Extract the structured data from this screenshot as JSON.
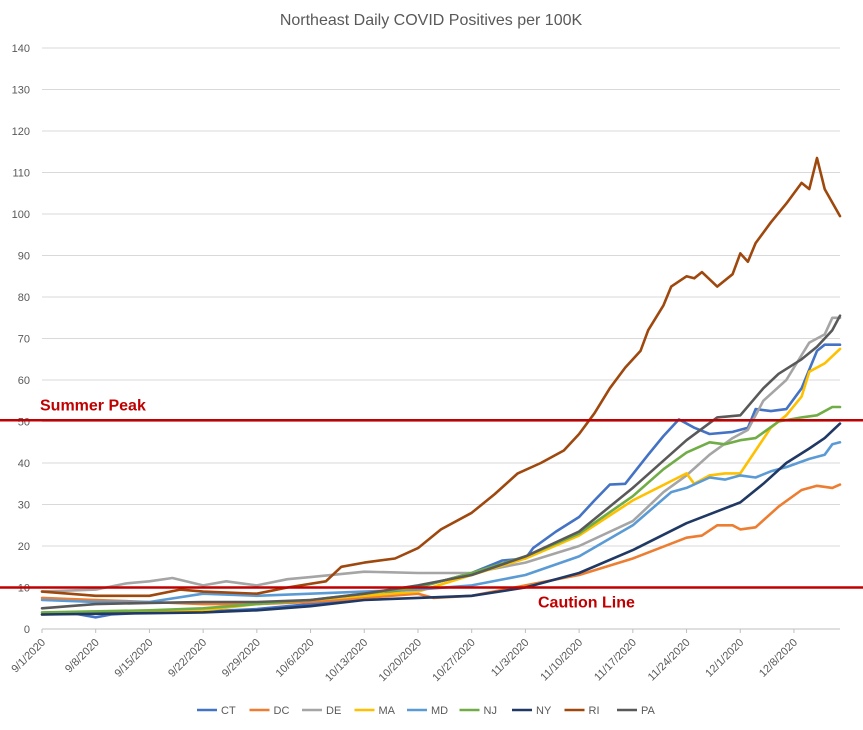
{
  "chart_data": {
    "type": "line",
    "title": "Northeast Daily COVID Positives per 100K",
    "ylim": [
      0,
      140
    ],
    "y_ticks": [
      0,
      10,
      20,
      30,
      40,
      50,
      60,
      70,
      80,
      90,
      100,
      110,
      120,
      130,
      140
    ],
    "x_tick_labels": [
      "9/1/2020",
      "9/8/2020",
      "9/15/2020",
      "9/22/2020",
      "9/29/2020",
      "10/6/2020",
      "10/13/2020",
      "10/20/2020",
      "10/27/2020",
      "11/3/2020",
      "11/10/2020",
      "11/17/2020",
      "11/24/2020",
      "12/1/2020",
      "12/8/2020"
    ],
    "x_start": "9/1/2020",
    "x_end": "12/14/2020",
    "grid": "horizontal",
    "legend_position": "bottom",
    "reference_lines": [
      {
        "label": "Summer Peak",
        "value": 50.3,
        "color": "#c00000"
      },
      {
        "label": "Caution Line",
        "value": 10,
        "color": "#c00000"
      }
    ],
    "series": [
      {
        "name": "CT",
        "color": "#4472c4",
        "points": [
          [
            "9/1/2020",
            3.5
          ],
          [
            "9/5/2020",
            3.8
          ],
          [
            "9/8/2020",
            2.8
          ],
          [
            "9/10/2020",
            3.5
          ],
          [
            "9/15/2020",
            4.0
          ],
          [
            "9/22/2020",
            4.2
          ],
          [
            "9/29/2020",
            4.8
          ],
          [
            "10/6/2020",
            6.0
          ],
          [
            "10/13/2020",
            7.5
          ],
          [
            "10/20/2020",
            10.0
          ],
          [
            "10/27/2020",
            13.5
          ],
          [
            "10/31/2020",
            16.5
          ],
          [
            "11/3/2020",
            17.0
          ],
          [
            "11/4/2020",
            19.5
          ],
          [
            "11/7/2020",
            23.5
          ],
          [
            "11/10/2020",
            27.0
          ],
          [
            "11/12/2020",
            31.0
          ],
          [
            "11/14/2020",
            34.8
          ],
          [
            "11/16/2020",
            35.0
          ],
          [
            "11/19/2020",
            42.0
          ],
          [
            "11/21/2020",
            46.5
          ],
          [
            "11/23/2020",
            50.5
          ],
          [
            "11/25/2020",
            48.5
          ],
          [
            "11/27/2020",
            47.0
          ],
          [
            "11/30/2020",
            47.5
          ],
          [
            "12/2/2020",
            48.5
          ],
          [
            "12/3/2020",
            53.0
          ],
          [
            "12/5/2020",
            52.5
          ],
          [
            "12/7/2020",
            53.0
          ],
          [
            "12/9/2020",
            58.0
          ],
          [
            "12/11/2020",
            67.0
          ],
          [
            "12/12/2020",
            68.5
          ],
          [
            "12/14/2020",
            68.5
          ]
        ]
      },
      {
        "name": "DC",
        "color": "#ed7d31",
        "points": [
          [
            "9/1/2020",
            7.5
          ],
          [
            "9/8/2020",
            7.0
          ],
          [
            "9/15/2020",
            6.5
          ],
          [
            "9/22/2020",
            6.0
          ],
          [
            "9/29/2020",
            6.0
          ],
          [
            "10/6/2020",
            6.5
          ],
          [
            "10/13/2020",
            7.5
          ],
          [
            "10/20/2020",
            8.5
          ],
          [
            "10/22/2020",
            7.5
          ],
          [
            "10/27/2020",
            8.0
          ],
          [
            "11/3/2020",
            10.5
          ],
          [
            "11/10/2020",
            13.0
          ],
          [
            "11/17/2020",
            17.0
          ],
          [
            "11/24/2020",
            22.0
          ],
          [
            "11/26/2020",
            22.5
          ],
          [
            "11/28/2020",
            25.0
          ],
          [
            "11/30/2020",
            25.0
          ],
          [
            "12/1/2020",
            24.0
          ],
          [
            "12/3/2020",
            24.5
          ],
          [
            "12/6/2020",
            29.5
          ],
          [
            "12/9/2020",
            33.5
          ],
          [
            "12/11/2020",
            34.5
          ],
          [
            "12/13/2020",
            34.0
          ],
          [
            "12/14/2020",
            34.8
          ]
        ]
      },
      {
        "name": "DE",
        "color": "#a5a5a5",
        "points": [
          [
            "9/1/2020",
            9.0
          ],
          [
            "9/8/2020",
            9.5
          ],
          [
            "9/12/2020",
            11.0
          ],
          [
            "9/15/2020",
            11.5
          ],
          [
            "9/18/2020",
            12.3
          ],
          [
            "9/22/2020",
            10.5
          ],
          [
            "9/25/2020",
            11.5
          ],
          [
            "9/29/2020",
            10.5
          ],
          [
            "10/3/2020",
            12.0
          ],
          [
            "10/6/2020",
            12.5
          ],
          [
            "10/13/2020",
            13.8
          ],
          [
            "10/20/2020",
            13.5
          ],
          [
            "10/27/2020",
            13.5
          ],
          [
            "11/3/2020",
            16.0
          ],
          [
            "11/10/2020",
            20.0
          ],
          [
            "11/17/2020",
            26.0
          ],
          [
            "11/21/2020",
            33.0
          ],
          [
            "11/24/2020",
            37.0
          ],
          [
            "11/27/2020",
            42.0
          ],
          [
            "11/30/2020",
            46.0
          ],
          [
            "12/2/2020",
            48.0
          ],
          [
            "12/4/2020",
            55.0
          ],
          [
            "12/7/2020",
            60.0
          ],
          [
            "12/10/2020",
            69.0
          ],
          [
            "12/12/2020",
            71.0
          ],
          [
            "12/13/2020",
            75.0
          ],
          [
            "12/14/2020",
            75.0
          ]
        ]
      },
      {
        "name": "MA",
        "color": "#ffc000",
        "points": [
          [
            "9/1/2020",
            3.5
          ],
          [
            "9/15/2020",
            4.0
          ],
          [
            "9/22/2020",
            4.5
          ],
          [
            "9/29/2020",
            6.0
          ],
          [
            "10/6/2020",
            7.0
          ],
          [
            "10/13/2020",
            8.0
          ],
          [
            "10/20/2020",
            9.0
          ],
          [
            "10/27/2020",
            13.0
          ],
          [
            "11/3/2020",
            17.0
          ],
          [
            "11/10/2020",
            22.5
          ],
          [
            "11/17/2020",
            31.0
          ],
          [
            "11/24/2020",
            37.5
          ],
          [
            "11/25/2020",
            35.0
          ],
          [
            "11/27/2020",
            37.0
          ],
          [
            "11/29/2020",
            37.5
          ],
          [
            "12/1/2020",
            37.5
          ],
          [
            "12/3/2020",
            43.0
          ],
          [
            "12/5/2020",
            48.5
          ],
          [
            "12/7/2020",
            51.5
          ],
          [
            "12/9/2020",
            56.0
          ],
          [
            "12/10/2020",
            62.0
          ],
          [
            "12/12/2020",
            64.0
          ],
          [
            "12/14/2020",
            67.5
          ]
        ]
      },
      {
        "name": "MD",
        "color": "#5b9bd5",
        "points": [
          [
            "9/1/2020",
            7.0
          ],
          [
            "9/8/2020",
            6.5
          ],
          [
            "9/15/2020",
            6.5
          ],
          [
            "9/22/2020",
            8.5
          ],
          [
            "9/29/2020",
            8.0
          ],
          [
            "10/6/2020",
            8.5
          ],
          [
            "10/13/2020",
            9.0
          ],
          [
            "10/20/2020",
            9.5
          ],
          [
            "10/27/2020",
            10.5
          ],
          [
            "11/3/2020",
            13.0
          ],
          [
            "11/10/2020",
            17.5
          ],
          [
            "11/17/2020",
            25.0
          ],
          [
            "11/22/2020",
            33.0
          ],
          [
            "11/24/2020",
            34.0
          ],
          [
            "11/27/2020",
            36.5
          ],
          [
            "11/29/2020",
            36.0
          ],
          [
            "12/1/2020",
            37.0
          ],
          [
            "12/3/2020",
            36.5
          ],
          [
            "12/5/2020",
            38.0
          ],
          [
            "12/7/2020",
            39.0
          ],
          [
            "12/10/2020",
            41.0
          ],
          [
            "12/12/2020",
            42.0
          ],
          [
            "12/13/2020",
            44.5
          ],
          [
            "12/14/2020",
            45.0
          ]
        ]
      },
      {
        "name": "NJ",
        "color": "#70ad47",
        "points": [
          [
            "9/1/2020",
            4.0
          ],
          [
            "9/15/2020",
            4.5
          ],
          [
            "9/22/2020",
            5.0
          ],
          [
            "9/29/2020",
            6.0
          ],
          [
            "10/6/2020",
            7.0
          ],
          [
            "10/13/2020",
            8.5
          ],
          [
            "10/20/2020",
            10.0
          ],
          [
            "10/27/2020",
            13.5
          ],
          [
            "11/3/2020",
            17.5
          ],
          [
            "11/10/2020",
            23.0
          ],
          [
            "11/17/2020",
            32.0
          ],
          [
            "11/21/2020",
            38.5
          ],
          [
            "11/24/2020",
            42.5
          ],
          [
            "11/27/2020",
            45.0
          ],
          [
            "11/29/2020",
            44.5
          ],
          [
            "12/1/2020",
            45.5
          ],
          [
            "12/3/2020",
            46.0
          ],
          [
            "12/6/2020",
            50.0
          ],
          [
            "12/9/2020",
            51.0
          ],
          [
            "12/11/2020",
            51.5
          ],
          [
            "12/13/2020",
            53.5
          ],
          [
            "12/14/2020",
            53.5
          ]
        ]
      },
      {
        "name": "NY",
        "color": "#1f3864",
        "points": [
          [
            "9/1/2020",
            3.5
          ],
          [
            "9/15/2020",
            3.8
          ],
          [
            "9/22/2020",
            4.0
          ],
          [
            "9/29/2020",
            4.5
          ],
          [
            "10/6/2020",
            5.5
          ],
          [
            "10/13/2020",
            7.0
          ],
          [
            "10/20/2020",
            7.5
          ],
          [
            "10/27/2020",
            8.0
          ],
          [
            "11/3/2020",
            10.0
          ],
          [
            "11/10/2020",
            13.5
          ],
          [
            "11/17/2020",
            19.0
          ],
          [
            "11/24/2020",
            25.5
          ],
          [
            "12/1/2020",
            30.5
          ],
          [
            "12/4/2020",
            35.0
          ],
          [
            "12/7/2020",
            40.0
          ],
          [
            "12/10/2020",
            43.5
          ],
          [
            "12/12/2020",
            46.0
          ],
          [
            "12/14/2020",
            49.5
          ]
        ]
      },
      {
        "name": "RI",
        "color": "#9e480e",
        "points": [
          [
            "9/1/2020",
            9.0
          ],
          [
            "9/8/2020",
            8.0
          ],
          [
            "9/15/2020",
            8.0
          ],
          [
            "9/19/2020",
            9.5
          ],
          [
            "9/22/2020",
            9.0
          ],
          [
            "9/29/2020",
            8.5
          ],
          [
            "10/3/2020",
            10.0
          ],
          [
            "10/8/2020",
            11.5
          ],
          [
            "10/10/2020",
            15.0
          ],
          [
            "10/13/2020",
            16.0
          ],
          [
            "10/17/2020",
            17.0
          ],
          [
            "10/20/2020",
            19.5
          ],
          [
            "10/23/2020",
            24.0
          ],
          [
            "10/27/2020",
            28.0
          ],
          [
            "10/30/2020",
            32.5
          ],
          [
            "11/2/2020",
            37.5
          ],
          [
            "11/5/2020",
            40.0
          ],
          [
            "11/8/2020",
            43.0
          ],
          [
            "11/10/2020",
            47.0
          ],
          [
            "11/12/2020",
            52.0
          ],
          [
            "11/14/2020",
            58.0
          ],
          [
            "11/16/2020",
            63.0
          ],
          [
            "11/18/2020",
            67.0
          ],
          [
            "11/19/2020",
            72.0
          ],
          [
            "11/21/2020",
            78.0
          ],
          [
            "11/22/2020",
            82.5
          ],
          [
            "11/24/2020",
            85.0
          ],
          [
            "11/25/2020",
            84.5
          ],
          [
            "11/26/2020",
            86.0
          ],
          [
            "11/28/2020",
            82.5
          ],
          [
            "11/30/2020",
            85.5
          ],
          [
            "12/1/2020",
            90.5
          ],
          [
            "12/2/2020",
            88.5
          ],
          [
            "12/3/2020",
            93.0
          ],
          [
            "12/5/2020",
            98.0
          ],
          [
            "12/7/2020",
            102.5
          ],
          [
            "12/9/2020",
            107.5
          ],
          [
            "12/10/2020",
            106.0
          ],
          [
            "12/11/2020",
            113.5
          ],
          [
            "12/12/2020",
            106.0
          ],
          [
            "12/14/2020",
            99.5
          ]
        ]
      },
      {
        "name": "PA",
        "color": "#595959",
        "points": [
          [
            "9/1/2020",
            5.0
          ],
          [
            "9/8/2020",
            6.0
          ],
          [
            "9/15/2020",
            6.3
          ],
          [
            "9/22/2020",
            6.5
          ],
          [
            "9/29/2020",
            6.5
          ],
          [
            "10/6/2020",
            7.0
          ],
          [
            "10/13/2020",
            8.5
          ],
          [
            "10/20/2020",
            10.5
          ],
          [
            "10/27/2020",
            13.0
          ],
          [
            "11/3/2020",
            17.5
          ],
          [
            "11/10/2020",
            23.5
          ],
          [
            "11/17/2020",
            34.0
          ],
          [
            "11/24/2020",
            45.5
          ],
          [
            "11/28/2020",
            51.0
          ],
          [
            "12/1/2020",
            51.5
          ],
          [
            "12/4/2020",
            58.0
          ],
          [
            "12/6/2020",
            61.5
          ],
          [
            "12/9/2020",
            65.0
          ],
          [
            "12/11/2020",
            68.0
          ],
          [
            "12/13/2020",
            72.0
          ],
          [
            "12/14/2020",
            75.5
          ]
        ]
      }
    ]
  }
}
